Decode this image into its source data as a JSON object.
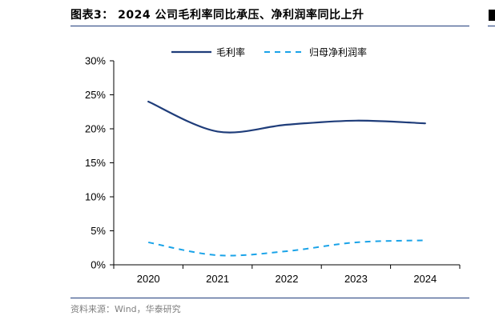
{
  "figure": {
    "title": "图表3：  2024 公司毛利率同比承压、净利润率同比上升",
    "source": "资料来源：Wind，华泰研究"
  },
  "chart_data": {
    "type": "line",
    "x": [
      "2020",
      "2021",
      "2022",
      "2023",
      "2024"
    ],
    "series": [
      {
        "name": "毛利率",
        "values": [
          24.0,
          19.6,
          20.6,
          21.2,
          20.8
        ],
        "color": "#1f3d7a",
        "style": "solid"
      },
      {
        "name": "归母净利润率",
        "values": [
          3.3,
          1.4,
          2.0,
          3.3,
          3.6
        ],
        "color": "#1aa3e8",
        "style": "dashed"
      }
    ],
    "ylim": [
      0,
      30
    ],
    "yticks": [
      0,
      5,
      10,
      15,
      20,
      25,
      30
    ],
    "ytick_labels": [
      "0%",
      "5%",
      "10%",
      "15%",
      "20%",
      "25%",
      "30%"
    ],
    "legend_position": "top-center",
    "grid": false
  }
}
